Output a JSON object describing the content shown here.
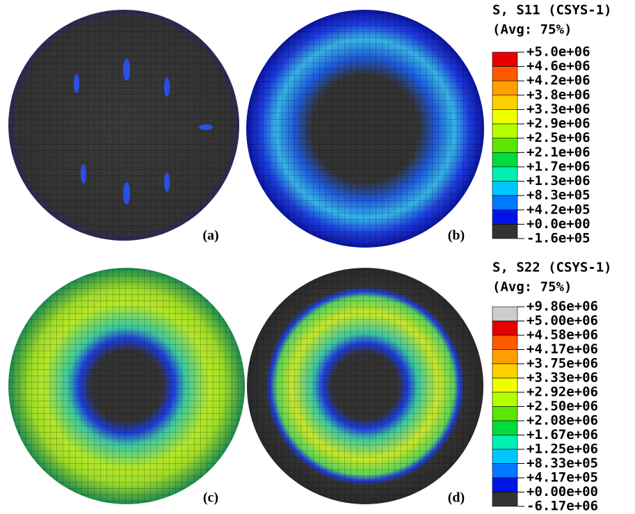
{
  "figure": {
    "panels": [
      {
        "label": "(a)"
      },
      {
        "label": "(b)"
      },
      {
        "label": "(c)"
      },
      {
        "label": "(d)"
      }
    ],
    "legends": [
      {
        "title": [
          "S, S11 (CSYS-1)",
          "(Avg: 75%)"
        ],
        "labels": [
          "+5.0e+06",
          "+4.6e+06",
          "+4.2e+06",
          "+3.8e+06",
          "+3.3e+06",
          "+2.9e+06",
          "+2.5e+06",
          "+2.1e+06",
          "+1.7e+06",
          "+1.3e+06",
          "+8.3e+05",
          "+4.2e+05",
          "+0.0e+00",
          "-1.6e+05"
        ],
        "colors": [
          "#e60000",
          "#ff5a00",
          "#ffa000",
          "#ffd000",
          "#f0ff00",
          "#b4ff00",
          "#5ae600",
          "#00dc3c",
          "#00f0b4",
          "#00c8ff",
          "#0078ff",
          "#0014e6",
          "#333333"
        ]
      },
      {
        "title": [
          "S, S22 (CSYS-1)",
          "(Avg: 75%)"
        ],
        "labels": [
          "+9.86e+06",
          "+5.00e+06",
          "+4.58e+06",
          "+4.17e+06",
          "+3.75e+06",
          "+3.33e+06",
          "+2.92e+06",
          "+2.50e+06",
          "+2.08e+06",
          "+1.67e+06",
          "+1.25e+06",
          "+8.33e+05",
          "+4.17e+05",
          "+0.00e+00",
          "-6.17e+06"
        ],
        "colors": [
          "#cccccc",
          "#e60000",
          "#ff5a00",
          "#ffa000",
          "#ffd000",
          "#f0ff00",
          "#b4ff00",
          "#5ae600",
          "#00dc3c",
          "#00f0b4",
          "#00c8ff",
          "#0078ff",
          "#0014e6",
          "#333333"
        ]
      }
    ]
  }
}
